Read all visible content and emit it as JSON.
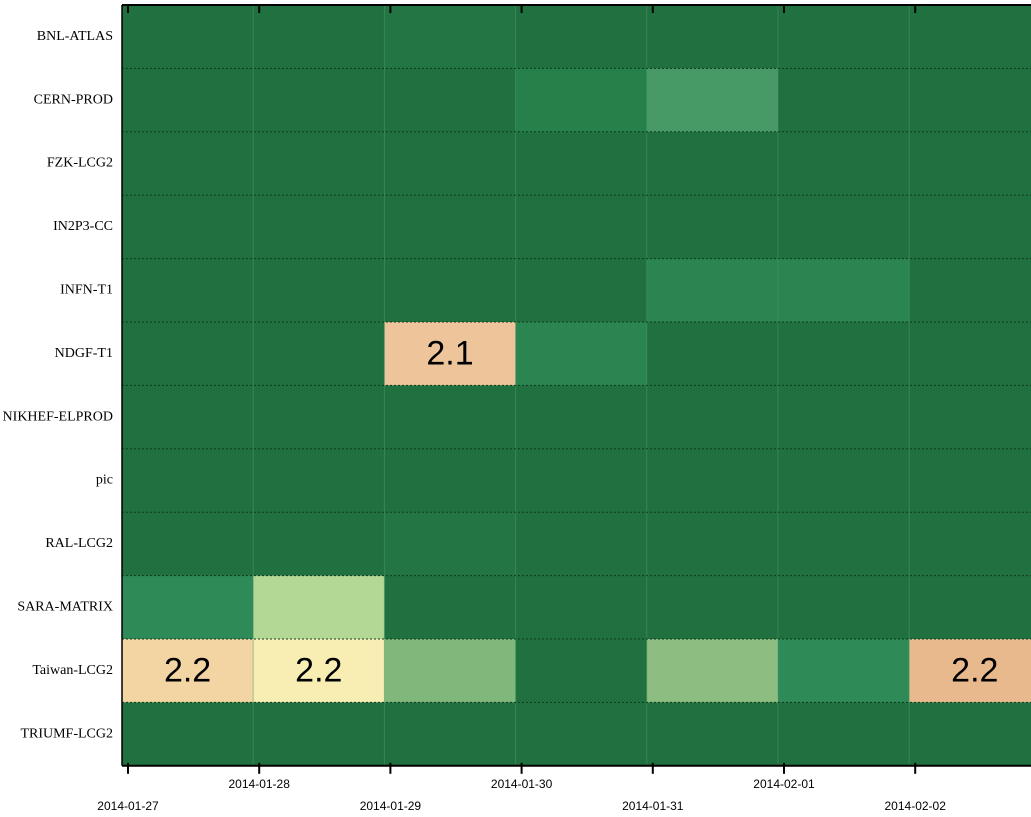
{
  "chart_data": {
    "type": "heatmap",
    "categories": [
      "2014-01-27",
      "2014-01-28",
      "2014-01-29",
      "2014-01-30",
      "2014-01-31",
      "2014-02-01",
      "2014-02-02"
    ],
    "rows": [
      "BNL-ATLAS",
      "CERN-PROD",
      "FZK-LCG2",
      "IN2P3-CC",
      "INFN-T1",
      "NDGF-T1",
      "NIKHEF-ELPROD",
      "pic",
      "RAL-LCG2",
      "SARA-MATRIX",
      "Taiwan-LCG2",
      "TRIUMF-LCG2"
    ],
    "values": [
      [
        null,
        null,
        null,
        null,
        null,
        null,
        null
      ],
      [
        null,
        null,
        null,
        null,
        null,
        null,
        null
      ],
      [
        null,
        null,
        null,
        null,
        null,
        null,
        null
      ],
      [
        null,
        null,
        null,
        null,
        null,
        null,
        null
      ],
      [
        null,
        null,
        null,
        null,
        null,
        null,
        null
      ],
      [
        null,
        null,
        2.1,
        null,
        null,
        null,
        null
      ],
      [
        null,
        null,
        null,
        null,
        null,
        null,
        null
      ],
      [
        null,
        null,
        null,
        null,
        null,
        null,
        null
      ],
      [
        null,
        null,
        null,
        null,
        null,
        null,
        null
      ],
      [
        null,
        null,
        null,
        null,
        null,
        null,
        null
      ],
      [
        2.2,
        2.2,
        null,
        null,
        null,
        null,
        2.2
      ],
      [
        null,
        null,
        null,
        null,
        null,
        null,
        null
      ]
    ],
    "colors": [
      [
        "#21703f",
        "#21703f",
        "#237543",
        "#21703f",
        "#21703f",
        "#21703f",
        "#21703f"
      ],
      [
        "#21703f",
        "#21703f",
        "#21703f",
        "#26804a",
        "#479a65",
        "#21703f",
        "#21703f"
      ],
      [
        "#21703f",
        "#21703f",
        "#21703f",
        "#21703f",
        "#21703f",
        "#21703f",
        "#21703f"
      ],
      [
        "#21703f",
        "#21703f",
        "#21703f",
        "#21703f",
        "#21703f",
        "#21703f",
        "#21703f"
      ],
      [
        "#21703f",
        "#21703f",
        "#21703f",
        "#21703f",
        "#2a8550",
        "#2a8550",
        "#21703f"
      ],
      [
        "#21703f",
        "#21703f",
        "#eec49a",
        "#2a8550",
        "#21703f",
        "#21703f",
        "#21703f"
      ],
      [
        "#21703f",
        "#21703f",
        "#21703f",
        "#21703f",
        "#21703f",
        "#21703f",
        "#21703f"
      ],
      [
        "#21703f",
        "#21703f",
        "#21703f",
        "#21703f",
        "#21703f",
        "#21703f",
        "#21703f"
      ],
      [
        "#21703f",
        "#21703f",
        "#237543",
        "#21703f",
        "#21703f",
        "#21703f",
        "#21703f"
      ],
      [
        "#2e8b57",
        "#b3d794",
        "#21703f",
        "#21703f",
        "#21703f",
        "#21703f",
        "#21703f"
      ],
      [
        "#f2d5a3",
        "#f8eeb4",
        "#7fb87a",
        "#21703f",
        "#8dbd80",
        "#2e8b57",
        "#e9b98e"
      ],
      [
        "#21703f",
        "#21703f",
        "#21703f",
        "#21703f",
        "#21703f",
        "#21703f",
        "#21703f"
      ]
    ]
  }
}
